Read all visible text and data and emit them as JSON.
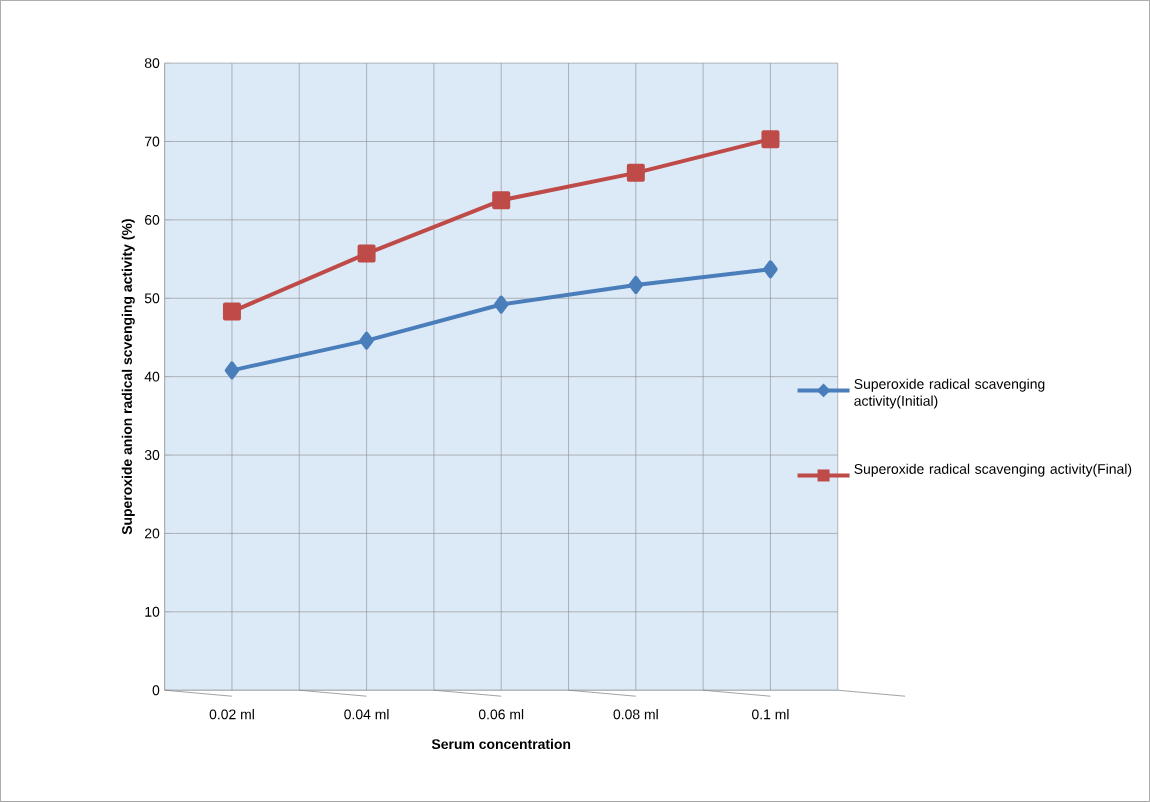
{
  "chart_data": {
    "type": "line",
    "xlabel": "Serum concentration",
    "ylabel": "Superoxide anion radical scvenging activity (%)",
    "categories": [
      "0.02 ml",
      "0.04 ml",
      "0.06 ml",
      "0.08 ml",
      "0.1 ml"
    ],
    "series": [
      {
        "name": "Superoxide radical scavenging activity(Initial)",
        "color": "#4a7ebb",
        "marker": "diamond",
        "values": [
          40.8,
          44.6,
          49.2,
          51.7,
          53.7
        ]
      },
      {
        "name": "Superoxide radical scavenging activity(Final)",
        "color": "#be4b48",
        "marker": "square",
        "values": [
          48.3,
          55.7,
          62.5,
          66.0,
          70.3
        ]
      }
    ],
    "ylim": [
      0,
      80
    ],
    "yticks": [
      0,
      10,
      20,
      30,
      40,
      50,
      60,
      70,
      80
    ],
    "grid": true,
    "legend": "right",
    "line_style": "solid"
  }
}
